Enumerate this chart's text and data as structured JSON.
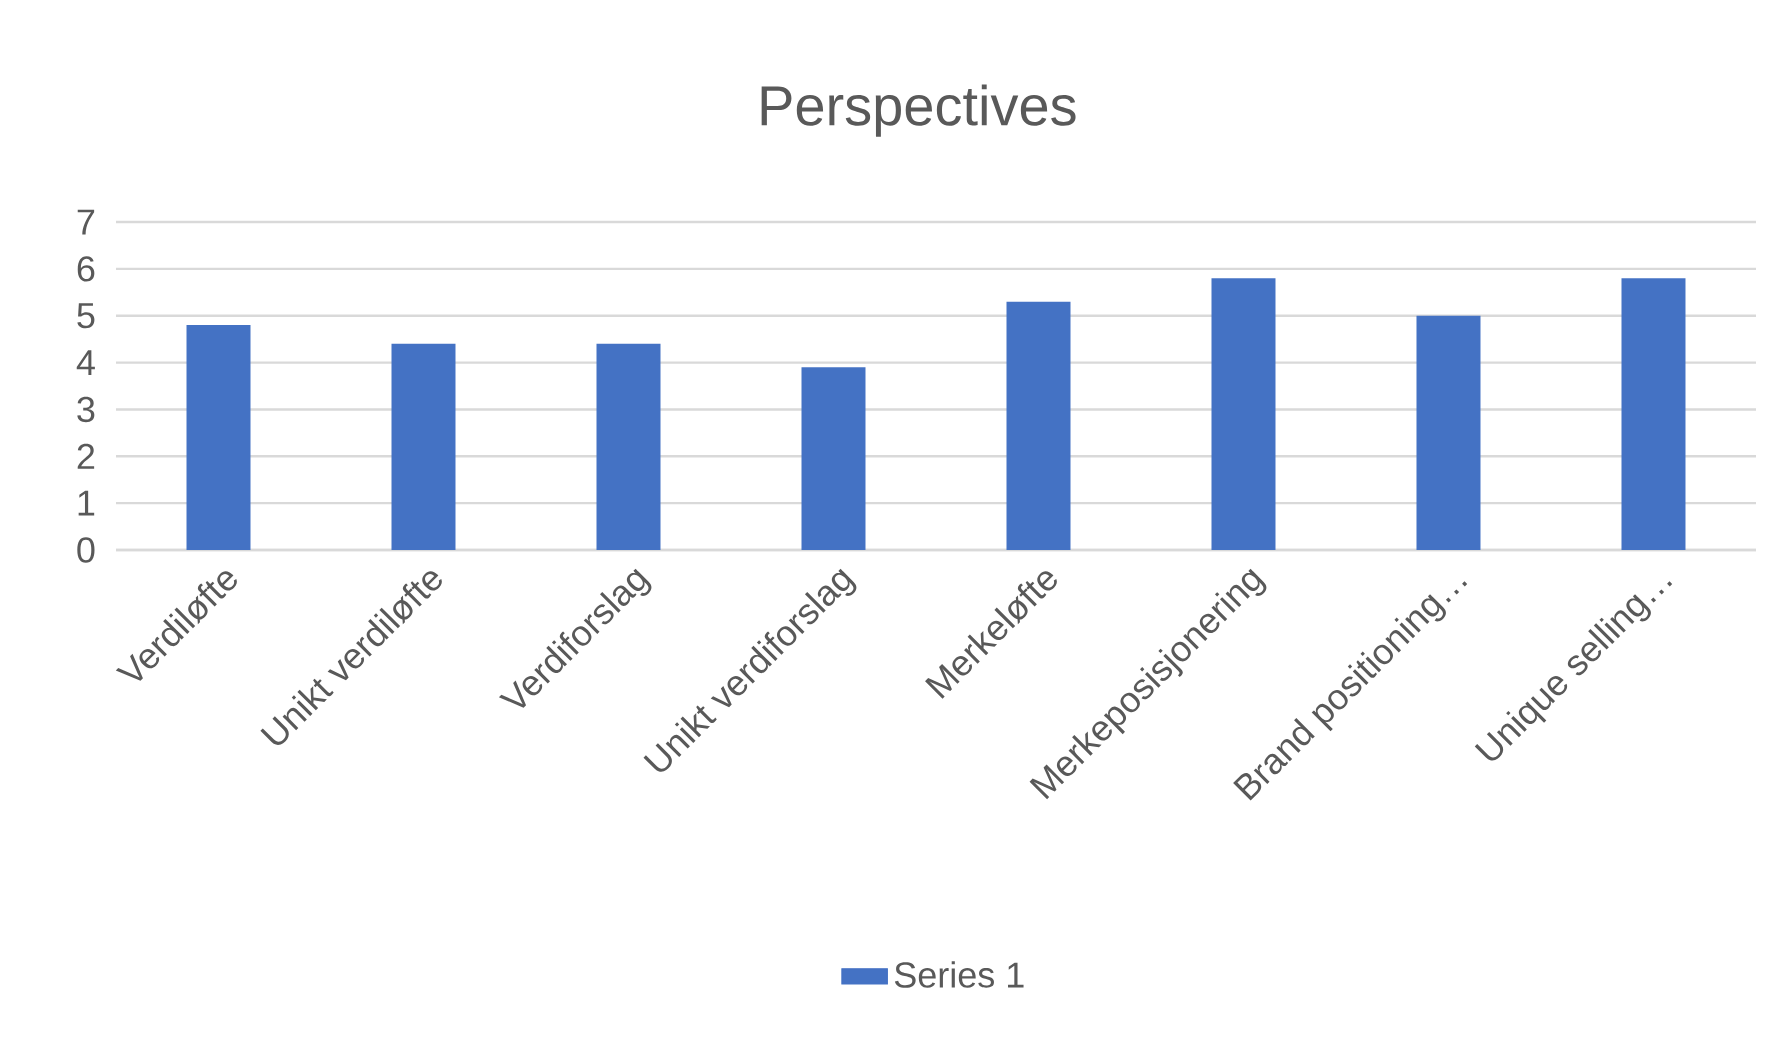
{
  "chart_data": {
    "type": "bar",
    "title": "Perspectives",
    "categories": [
      "Verdiløfte",
      "Unikt verdiløfte",
      "Verdiforslag",
      "Unikt verdiforslag",
      "Merkeløfte",
      "Merkeposisjonering",
      "Brand positioning…",
      "Unique selling…"
    ],
    "series": [
      {
        "name": "Series 1",
        "color": "#4472c4",
        "values": [
          4.8,
          4.4,
          4.4,
          3.9,
          5.3,
          5.8,
          5.0,
          5.8
        ]
      }
    ],
    "ylim": [
      0,
      7
    ],
    "yticks": [
      0,
      1,
      2,
      3,
      4,
      5,
      6,
      7
    ],
    "grid": "y",
    "legend": "bottom"
  }
}
